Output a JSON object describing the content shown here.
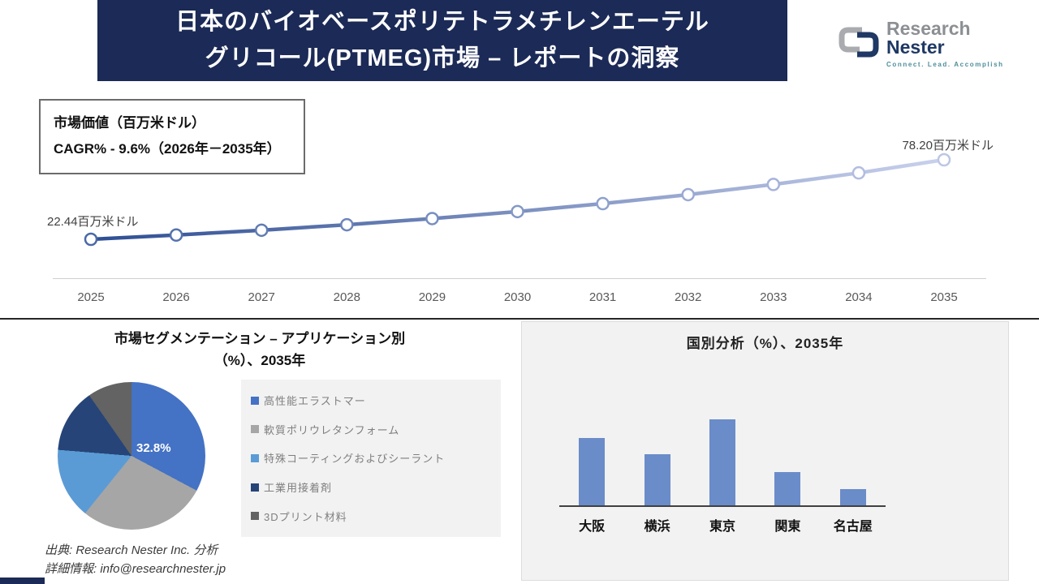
{
  "banner": {
    "title_line1": "日本のバイオベースポリテトラメチレンエーテル",
    "title_line2": "グリコール(PTMEG)市場 – レポートの洞察"
  },
  "logo": {
    "name_part1": "Research",
    "name_part2": "Nester",
    "tagline": "Connect. Lead. Accomplish"
  },
  "info_box": {
    "line1": "市場価値（百万米ドル）",
    "line2": "CAGR% - 9.6%（2026年－2035年）"
  },
  "colors": {
    "banner_navy": "#1B2A56",
    "line_gradient_start": "#2E4E93",
    "line_gradient_end": "#C9D1EC",
    "marker_stroke_start": "#4A69A8",
    "marker_stroke_end": "#BCC6E6"
  },
  "chart_data": [
    {
      "type": "line",
      "x": [
        2025,
        2026,
        2027,
        2028,
        2029,
        2030,
        2031,
        2032,
        2033,
        2034,
        2035
      ],
      "values": [
        22.44,
        25.42,
        28.8,
        32.63,
        36.97,
        41.88,
        47.45,
        53.76,
        60.9,
        69.0,
        78.2
      ],
      "values_note": "only first and last points labeled on chart; intermediate values estimated from marker positions (CAGR 9.6%)",
      "start_label": "22.44百万米ドル",
      "end_label": "78.20百万米ドル",
      "ylabel": "市場価値（百万米ドル）",
      "grid": false,
      "legend": "none",
      "marker": "open-circle"
    },
    {
      "type": "pie",
      "title": "市場セグメンテーション – アプリケーション別（%）、2035年",
      "title_lines": [
        "市場セグメンテーション – アプリケーション別",
        "（%）、2035年"
      ],
      "center_label": "32.8%",
      "slices": [
        {
          "label": "高性能エラストマー",
          "value": 32.8,
          "color": "#4472C4",
          "label_visible": true
        },
        {
          "label": "軟質ポリウレタンフォーム",
          "value": 28.0,
          "color": "#A6A6A6",
          "label_visible": false
        },
        {
          "label": "特殊コーティングおよびシーラント",
          "value": 15.5,
          "color": "#5B9BD5",
          "label_visible": false
        },
        {
          "label": "工業用接着剤",
          "value": 14.0,
          "color": "#264478",
          "label_visible": false
        },
        {
          "label": "3Dプリント材料",
          "value": 9.7,
          "color": "#636363",
          "label_visible": false
        }
      ],
      "values_note": "only the 32.8% slice is labeled; other shares estimated from slice angles",
      "legend_position": "right"
    },
    {
      "type": "bar",
      "title": "国別分析（%）、2035年",
      "categories": [
        "大阪",
        "横浜",
        "東京",
        "関東",
        "名古屋"
      ],
      "values": [
        25,
        19,
        32,
        12.5,
        6
      ],
      "values_note": "no data labels shown; values estimated from relative bar heights",
      "bar_color": "#6A8CC9",
      "grid": false
    }
  ],
  "footer": {
    "source": "出典: Research Nester Inc. 分析",
    "contact": "詳細情報: info@researchnester.jp"
  }
}
